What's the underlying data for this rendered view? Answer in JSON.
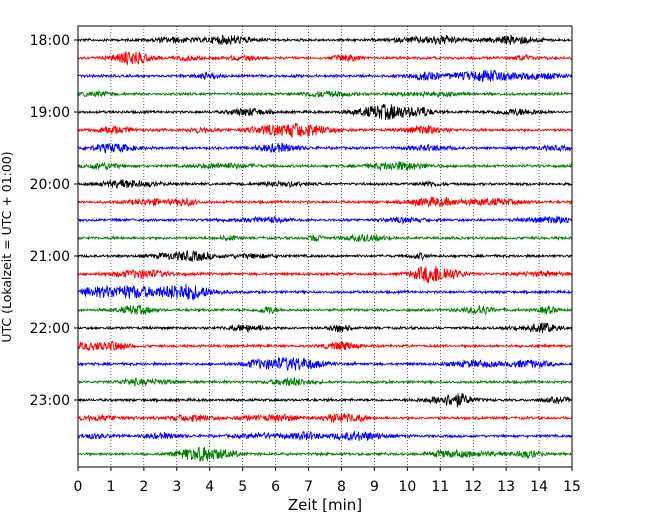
{
  "chart_data": {
    "type": "line",
    "title": "",
    "xlabel": "Zeit  [min]",
    "ylabel": "UTC (Lokalzeit = UTC + 01:00)",
    "xlim": [
      0,
      15
    ],
    "x_ticks": [
      0,
      1,
      2,
      3,
      4,
      5,
      6,
      7,
      8,
      9,
      10,
      11,
      12,
      13,
      14,
      15
    ],
    "y_ticks": [
      "18:00",
      "19:00",
      "20:00",
      "21:00",
      "22:00",
      "23:00"
    ],
    "grid": "vertical dotted",
    "colors": [
      "#000000",
      "#ff0000",
      "#0000ff",
      "#008000"
    ],
    "trace_start_time": "18:00",
    "trace_interval_minutes": 15,
    "trace_count": 24
  }
}
